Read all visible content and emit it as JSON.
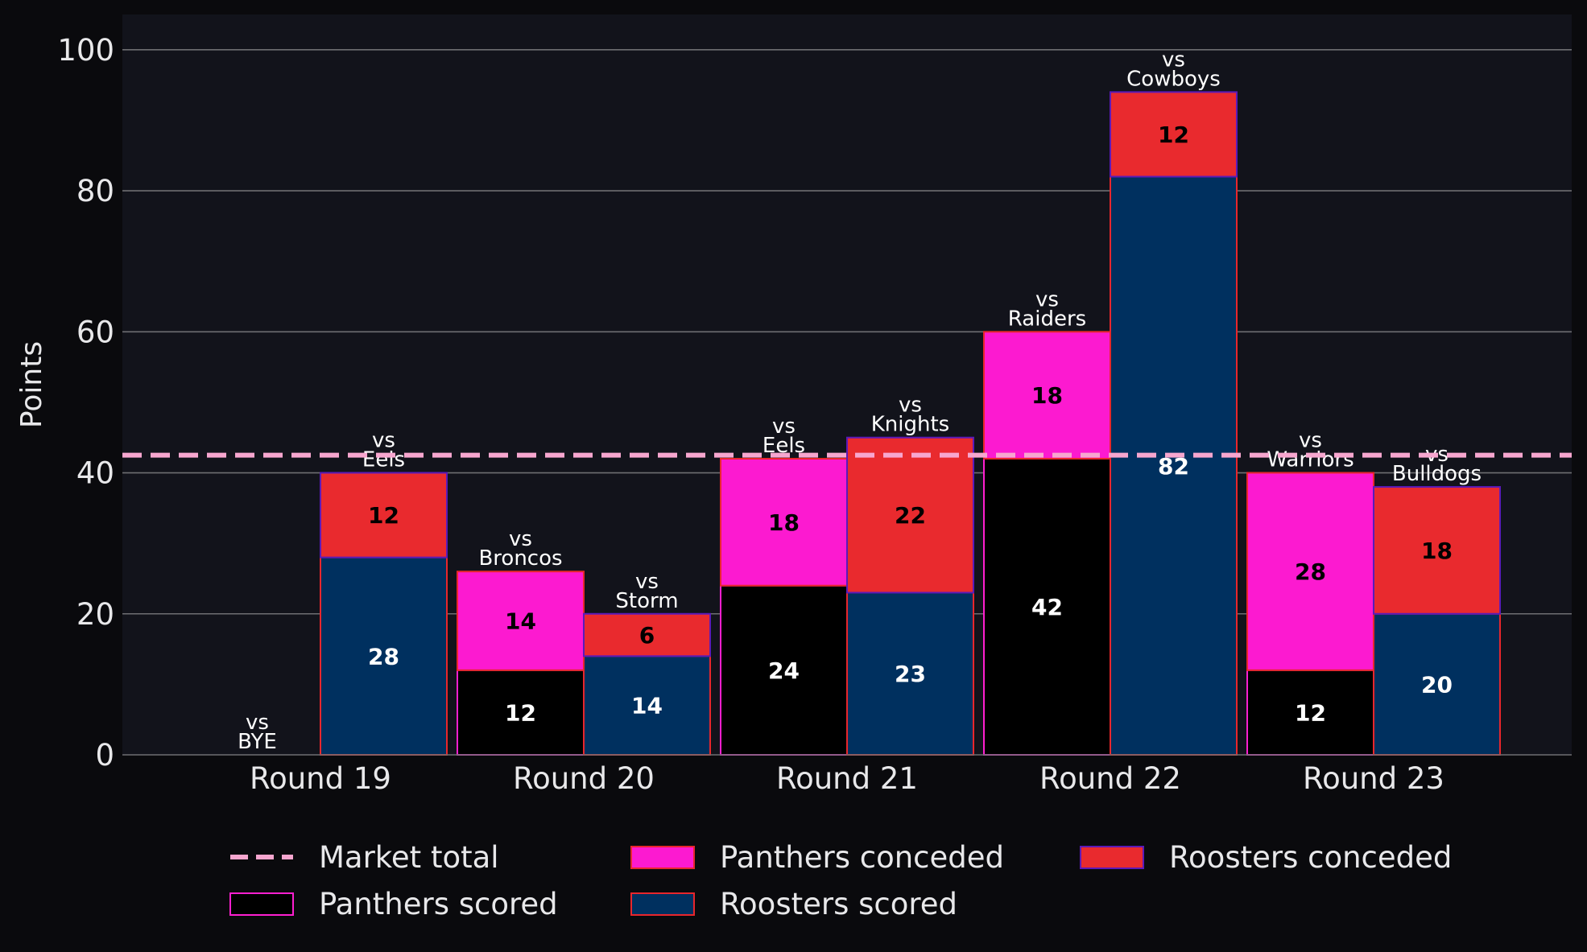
{
  "chart_data": {
    "type": "bar",
    "stacked": true,
    "grouped": true,
    "ylabel": "Points",
    "ylim": [
      0,
      105
    ],
    "yticks": [
      0,
      20,
      40,
      60,
      80,
      100
    ],
    "grid": "horizontal",
    "categories": [
      "Round 19",
      "Round 20",
      "Round 21",
      "Round 22",
      "Round 23"
    ],
    "market_total": 42.5,
    "legend": {
      "placement": "bottom-center",
      "items": [
        {
          "label": "Market total",
          "kind": "dashed-line",
          "color": "#f7a6cf"
        },
        {
          "label": "Panthers scored",
          "kind": "box",
          "fill": "#000000",
          "edge": "#ff1fd0"
        },
        {
          "label": "Panthers conceded",
          "kind": "box",
          "fill": "#fc1ad0",
          "edge": "#e8262c"
        },
        {
          "label": "Roosters scored",
          "kind": "box",
          "fill": "#00305f",
          "edge": "#e8262c"
        },
        {
          "label": "Roosters conceded",
          "kind": "box",
          "fill": "#e92a2e",
          "edge": "#5b1ab8"
        }
      ]
    },
    "teams": [
      {
        "name": "Panthers",
        "scored_color": "#000000",
        "scored_edge": "#ff1fd0",
        "scored_text": "#ffffff",
        "conceded_color": "#fc1ad0",
        "conceded_edge": "#e8262c",
        "conceded_text": "#000000",
        "games": [
          {
            "opponent": [
              "vs",
              "BYE"
            ],
            "scored": 0,
            "conceded": 0
          },
          {
            "opponent": [
              "vs",
              "Broncos"
            ],
            "scored": 12,
            "conceded": 14
          },
          {
            "opponent": [
              "vs",
              "Eels"
            ],
            "scored": 24,
            "conceded": 18
          },
          {
            "opponent": [
              "vs",
              "Raiders"
            ],
            "scored": 42,
            "conceded": 18
          },
          {
            "opponent": [
              "vs",
              "Warriors"
            ],
            "scored": 12,
            "conceded": 28
          }
        ]
      },
      {
        "name": "Roosters",
        "scored_color": "#00305f",
        "scored_edge": "#e8262c",
        "scored_text": "#ffffff",
        "conceded_color": "#e92a2e",
        "conceded_edge": "#5b1ab8",
        "conceded_text": "#000000",
        "games": [
          {
            "opponent": [
              "vs",
              "Eels"
            ],
            "scored": 28,
            "conceded": 12
          },
          {
            "opponent": [
              "vs",
              "Storm"
            ],
            "scored": 14,
            "conceded": 6
          },
          {
            "opponent": [
              "vs",
              "Knights"
            ],
            "scored": 23,
            "conceded": 22
          },
          {
            "opponent": [
              "vs",
              "Cowboys"
            ],
            "scored": 82,
            "conceded": 12
          },
          {
            "opponent": [
              "vs",
              "Bulldogs"
            ],
            "scored": 20,
            "conceded": 18
          }
        ]
      }
    ],
    "colors": {
      "page_background": "#0a0a0d",
      "plot_background": "#12131b",
      "grid": "#6e6e72",
      "text": "#e8e8ea",
      "opponent_label": "#ffffff",
      "market_line": "#f7a6cf"
    }
  }
}
